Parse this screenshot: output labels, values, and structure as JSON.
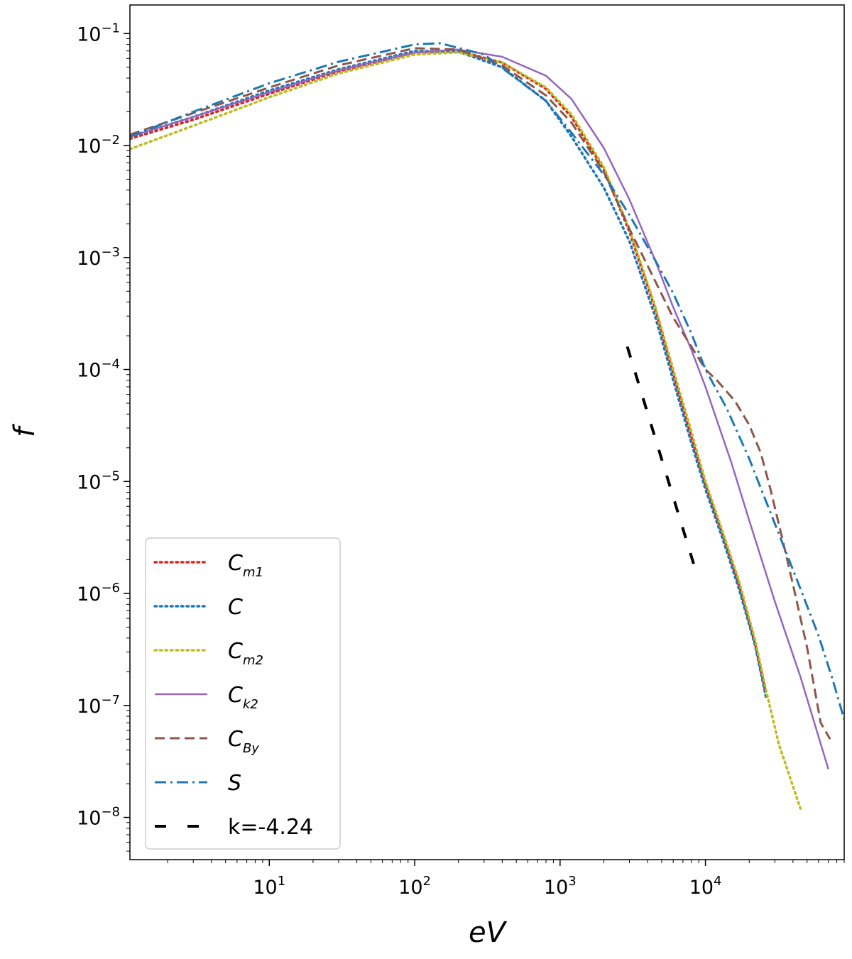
{
  "chart_data": {
    "type": "line",
    "xscale": "log",
    "yscale": "log",
    "xlabel": "eV",
    "ylabel": "f",
    "xlim": [
      1.1,
      90000
    ],
    "ylim": [
      4.2e-09,
      0.18
    ],
    "xticks": [
      {
        "value": 10,
        "base": "10",
        "exp": "1"
      },
      {
        "value": 100,
        "base": "10",
        "exp": "2"
      },
      {
        "value": 1000,
        "base": "10",
        "exp": "3"
      },
      {
        "value": 10000,
        "base": "10",
        "exp": "4"
      }
    ],
    "yticks": [
      {
        "value": 0.1,
        "base": "10",
        "exp": "−1"
      },
      {
        "value": 0.01,
        "base": "10",
        "exp": "−2"
      },
      {
        "value": 0.001,
        "base": "10",
        "exp": "−3"
      },
      {
        "value": 0.0001,
        "base": "10",
        "exp": "−4"
      },
      {
        "value": 1e-05,
        "base": "10",
        "exp": "−5"
      },
      {
        "value": 1e-06,
        "base": "10",
        "exp": "−6"
      },
      {
        "value": 1e-07,
        "base": "10",
        "exp": "−7"
      },
      {
        "value": 1e-08,
        "base": "10",
        "exp": "−8"
      }
    ],
    "legend_position": "lower-left",
    "series": [
      {
        "name": "C",
        "sub": "m1",
        "color": "#d62728",
        "dash": "dotted",
        "x": [
          1.1,
          3,
          10,
          30,
          100,
          200,
          400,
          800,
          1200,
          2000,
          3000,
          4500,
          6000,
          8000,
          10000,
          13000,
          17000,
          22000,
          26000
        ],
        "y": [
          0.0115,
          0.017,
          0.029,
          0.046,
          0.068,
          0.07,
          0.055,
          0.032,
          0.018,
          0.0061,
          0.0017,
          0.00035,
          9.2e-05,
          2.5e-05,
          9.3e-06,
          3.5e-06,
          1.2e-06,
          3.5e-07,
          1.3e-07
        ]
      },
      {
        "name": "C",
        "sub": "",
        "color": "#1f77b4",
        "dash": "dotted",
        "x": [
          1.1,
          3,
          10,
          30,
          100,
          200,
          400,
          800,
          1200,
          2000,
          3000,
          4500,
          6000,
          8000,
          10000,
          13000,
          17000,
          22000,
          26000
        ],
        "y": [
          0.012,
          0.018,
          0.031,
          0.048,
          0.07,
          0.069,
          0.05,
          0.025,
          0.012,
          0.0042,
          0.0014,
          0.0003,
          8e-05,
          2.2e-05,
          8.5e-06,
          3.2e-06,
          1.1e-06,
          3.4e-07,
          1.2e-07
        ]
      },
      {
        "name": "C",
        "sub": "m2",
        "color": "#bcbd22",
        "dash": "dotted",
        "x": [
          1.1,
          3,
          10,
          30,
          100,
          200,
          400,
          800,
          1200,
          2000,
          3000,
          4500,
          6000,
          8000,
          10000,
          13000,
          17000,
          22000,
          26000,
          32000,
          45000
        ],
        "y": [
          0.0093,
          0.015,
          0.027,
          0.044,
          0.065,
          0.068,
          0.055,
          0.033,
          0.019,
          0.0064,
          0.0018,
          0.00037,
          0.0001,
          2.8e-05,
          1e-05,
          3.7e-06,
          1.3e-06,
          3.8e-07,
          1.4e-07,
          4.5e-08,
          1.2e-08
        ]
      },
      {
        "name": "C",
        "sub": "k2",
        "color": "#9467bd",
        "dash": "solid",
        "x": [
          1.1,
          3,
          10,
          30,
          100,
          200,
          400,
          800,
          1200,
          2000,
          3000,
          4500,
          6000,
          8000,
          10000,
          15000,
          20000,
          30000,
          45000,
          70000
        ],
        "y": [
          0.012,
          0.018,
          0.03,
          0.047,
          0.068,
          0.072,
          0.062,
          0.042,
          0.026,
          0.0095,
          0.0033,
          0.00095,
          0.00036,
          0.00015,
          7e-05,
          1.5e-05,
          4.5e-06,
          8.5e-07,
          1.8e-07,
          2.7e-08
        ]
      },
      {
        "name": "C",
        "sub": "By",
        "color": "#8c564b",
        "dash": "dashed",
        "x": [
          1.1,
          3,
          10,
          30,
          100,
          200,
          400,
          800,
          1200,
          2000,
          3000,
          4500,
          6000,
          8000,
          10000,
          12000,
          16000,
          20000,
          24000,
          28000,
          33000,
          40000,
          50000,
          62000,
          72000
        ],
        "y": [
          0.0125,
          0.0195,
          0.033,
          0.052,
          0.074,
          0.072,
          0.052,
          0.028,
          0.016,
          0.0058,
          0.0018,
          0.00062,
          0.00029,
          0.00016,
          0.0001,
          8e-05,
          5.2e-05,
          3.2e-05,
          1.8e-05,
          8.5e-06,
          3.5e-06,
          1.2e-06,
          3.3e-07,
          7e-08,
          5e-08
        ]
      },
      {
        "name": "S",
        "sub": "",
        "color": "#1f77b4",
        "dash": "dashdot",
        "x": [
          1.1,
          3,
          10,
          30,
          100,
          150,
          300,
          800,
          1200,
          2000,
          3000,
          4500,
          6000,
          8000,
          10000,
          14000,
          20000,
          30000,
          45000,
          60000,
          75000,
          90000
        ],
        "y": [
          0.012,
          0.02,
          0.036,
          0.056,
          0.08,
          0.082,
          0.065,
          0.025,
          0.013,
          0.0055,
          0.0024,
          0.00095,
          0.00048,
          0.00021,
          0.0001,
          4.5e-05,
          1.6e-05,
          4.2e-06,
          1.1e-06,
          4.2e-07,
          1.7e-07,
          7.5e-08
        ]
      },
      {
        "name": "k=-4.24",
        "sub": "",
        "color": "#000000",
        "dash": "dashed-black",
        "x": [
          2900,
          8700
        ],
        "y": [
          0.00016,
          1.5e-06
        ]
      }
    ]
  }
}
